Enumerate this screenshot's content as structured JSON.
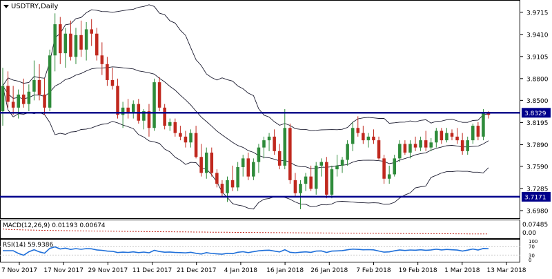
{
  "chart_data": {
    "type": "candlestick",
    "title": "USDTRY,Daily",
    "colors": {
      "up": "#2e8b3a",
      "down": "#c0281e",
      "bands": "#1a1a2e",
      "hline": "#00008b",
      "level_label_bg": "#00008b",
      "macd_signal": "#c0281e",
      "rsi_line": "#1e6fd9",
      "grid": "#c8c8c8"
    },
    "price_axis": {
      "ylim": [
        3.6875,
        3.9865
      ],
      "ticks": [
        "3.9715",
        "3.9410",
        "3.9105",
        "3.8800",
        "3.8500",
        "3.8195",
        "3.7890",
        "3.7590",
        "3.7285",
        "3.6980"
      ],
      "levels": [
        {
          "label": "3.8329",
          "value": 3.8329
        },
        {
          "label": "3.7171",
          "value": 3.7171
        }
      ]
    },
    "x_labels": [
      "7 Nov 2017",
      "17 Nov 2017",
      "29 Nov 2017",
      "11 Dec 2017",
      "21 Dec 2017",
      "4 Jan 2018",
      "16 Jan 2018",
      "26 Jan 2018",
      "7 Feb 2018",
      "19 Feb 2018",
      "1 Mar 2018",
      "13 Mar 2018"
    ],
    "candles": [
      [
        3.835,
        3.895,
        3.815,
        3.87
      ],
      [
        3.87,
        3.89,
        3.84,
        3.848
      ],
      [
        3.848,
        3.87,
        3.83,
        3.84
      ],
      [
        3.84,
        3.865,
        3.825,
        3.858
      ],
      [
        3.858,
        3.88,
        3.84,
        3.845
      ],
      [
        3.845,
        3.872,
        3.835,
        3.862
      ],
      [
        3.862,
        3.905,
        3.85,
        3.878
      ],
      [
        3.878,
        3.9,
        3.85,
        3.858
      ],
      [
        3.858,
        3.88,
        3.83,
        3.84
      ],
      [
        3.84,
        3.92,
        3.835,
        3.912
      ],
      [
        3.912,
        3.97,
        3.89,
        3.955
      ],
      [
        3.955,
        3.965,
        3.9,
        3.915
      ],
      [
        3.915,
        3.95,
        3.895,
        3.942
      ],
      [
        3.942,
        3.96,
        3.905,
        3.91
      ],
      [
        3.91,
        3.95,
        3.9,
        3.94
      ],
      [
        3.94,
        3.96,
        3.91,
        3.92
      ],
      [
        3.92,
        3.958,
        3.905,
        3.948
      ],
      [
        3.948,
        3.962,
        3.925,
        3.942
      ],
      [
        3.942,
        3.95,
        3.905,
        3.912
      ],
      [
        3.912,
        3.93,
        3.885,
        3.9
      ],
      [
        3.9,
        3.91,
        3.87,
        3.878
      ],
      [
        3.878,
        3.895,
        3.865,
        3.87
      ],
      [
        3.87,
        3.88,
        3.825,
        3.83
      ],
      [
        3.83,
        3.848,
        3.812,
        3.84
      ],
      [
        3.84,
        3.852,
        3.825,
        3.833
      ],
      [
        3.833,
        3.85,
        3.825,
        3.845
      ],
      [
        3.845,
        3.852,
        3.818,
        3.822
      ],
      [
        3.822,
        3.838,
        3.81,
        3.835
      ],
      [
        3.835,
        3.845,
        3.8,
        3.812
      ],
      [
        3.812,
        3.88,
        3.808,
        3.875
      ],
      [
        3.875,
        3.882,
        3.835,
        3.84
      ],
      [
        3.84,
        3.845,
        3.81,
        3.815
      ],
      [
        3.815,
        3.825,
        3.808,
        3.82
      ],
      [
        3.82,
        3.825,
        3.8,
        3.805
      ],
      [
        3.805,
        3.815,
        3.795,
        3.8
      ],
      [
        3.8,
        3.808,
        3.785,
        3.792
      ],
      [
        3.792,
        3.81,
        3.785,
        3.805
      ],
      [
        3.805,
        3.815,
        3.77,
        3.772
      ],
      [
        3.772,
        3.79,
        3.745,
        3.75
      ],
      [
        3.75,
        3.785,
        3.742,
        3.778
      ],
      [
        3.778,
        3.785,
        3.745,
        3.75
      ],
      [
        3.75,
        3.755,
        3.73,
        3.735
      ],
      [
        3.735,
        3.74,
        3.718,
        3.722
      ],
      [
        3.722,
        3.745,
        3.71,
        3.74
      ],
      [
        3.74,
        3.76,
        3.725,
        3.73
      ],
      [
        3.73,
        3.765,
        3.725,
        3.758
      ],
      [
        3.758,
        3.775,
        3.745,
        3.77
      ],
      [
        3.77,
        3.778,
        3.74,
        3.745
      ],
      [
        3.745,
        3.77,
        3.74,
        3.765
      ],
      [
        3.765,
        3.79,
        3.75,
        3.785
      ],
      [
        3.785,
        3.8,
        3.77,
        3.795
      ],
      [
        3.795,
        3.805,
        3.78,
        3.8
      ],
      [
        3.8,
        3.81,
        3.775,
        3.78
      ],
      [
        3.78,
        3.79,
        3.755,
        3.76
      ],
      [
        3.76,
        3.838,
        3.755,
        3.812
      ],
      [
        3.812,
        3.818,
        3.735,
        3.74
      ],
      [
        3.74,
        3.75,
        3.718,
        3.722
      ],
      [
        3.722,
        3.74,
        3.7,
        3.735
      ],
      [
        3.735,
        3.75,
        3.725,
        3.745
      ],
      [
        3.745,
        3.76,
        3.725,
        3.728
      ],
      [
        3.728,
        3.765,
        3.72,
        3.76
      ],
      [
        3.76,
        3.77,
        3.745,
        3.765
      ],
      [
        3.765,
        3.772,
        3.715,
        3.72
      ],
      [
        3.72,
        3.76,
        3.715,
        3.755
      ],
      [
        3.755,
        3.775,
        3.745,
        3.76
      ],
      [
        3.76,
        3.772,
        3.75,
        3.768
      ],
      [
        3.768,
        3.795,
        3.76,
        3.79
      ],
      [
        3.79,
        3.82,
        3.78,
        3.812
      ],
      [
        3.812,
        3.828,
        3.8,
        3.805
      ],
      [
        3.805,
        3.815,
        3.79,
        3.795
      ],
      [
        3.795,
        3.805,
        3.785,
        3.8
      ],
      [
        3.8,
        3.81,
        3.79,
        3.795
      ],
      [
        3.795,
        3.8,
        3.768,
        3.77
      ],
      [
        3.77,
        3.775,
        3.735,
        3.742
      ],
      [
        3.742,
        3.76,
        3.735,
        3.748
      ],
      [
        3.748,
        3.775,
        3.745,
        3.77
      ],
      [
        3.77,
        3.795,
        3.765,
        3.79
      ],
      [
        3.79,
        3.795,
        3.775,
        3.778
      ],
      [
        3.778,
        3.795,
        3.77,
        3.79
      ],
      [
        3.79,
        3.8,
        3.78,
        3.785
      ],
      [
        3.785,
        3.8,
        3.78,
        3.795
      ],
      [
        3.795,
        3.808,
        3.78,
        3.785
      ],
      [
        3.785,
        3.798,
        3.78,
        3.792
      ],
      [
        3.792,
        3.812,
        3.785,
        3.808
      ],
      [
        3.808,
        3.812,
        3.79,
        3.795
      ],
      [
        3.795,
        3.812,
        3.792,
        3.805
      ],
      [
        3.805,
        3.81,
        3.795,
        3.8
      ],
      [
        3.8,
        3.812,
        3.79,
        3.795
      ],
      [
        3.795,
        3.805,
        3.775,
        3.78
      ],
      [
        3.78,
        3.8,
        3.775,
        3.795
      ],
      [
        3.795,
        3.818,
        3.79,
        3.815
      ],
      [
        3.815,
        3.82,
        3.795,
        3.8
      ],
      [
        3.8,
        3.838,
        3.795,
        3.832
      ],
      [
        3.832,
        3.835,
        3.825,
        3.83
      ]
    ],
    "macd": {
      "label": "MACD(12,26,9)",
      "values_text": [
        "0.01193",
        "0.00674"
      ],
      "axis_top": "0.07485",
      "axis_bottom": "0.00",
      "ylim": [
        -0.015,
        0.08
      ],
      "signal_start": 0.032,
      "signal_end": 0.0067
    },
    "rsi": {
      "label": "RSI(14)",
      "value_text": "59.9386",
      "axis_ticks": [
        "100",
        "70",
        "30",
        "0"
      ],
      "ylim": [
        0,
        100
      ]
    }
  }
}
